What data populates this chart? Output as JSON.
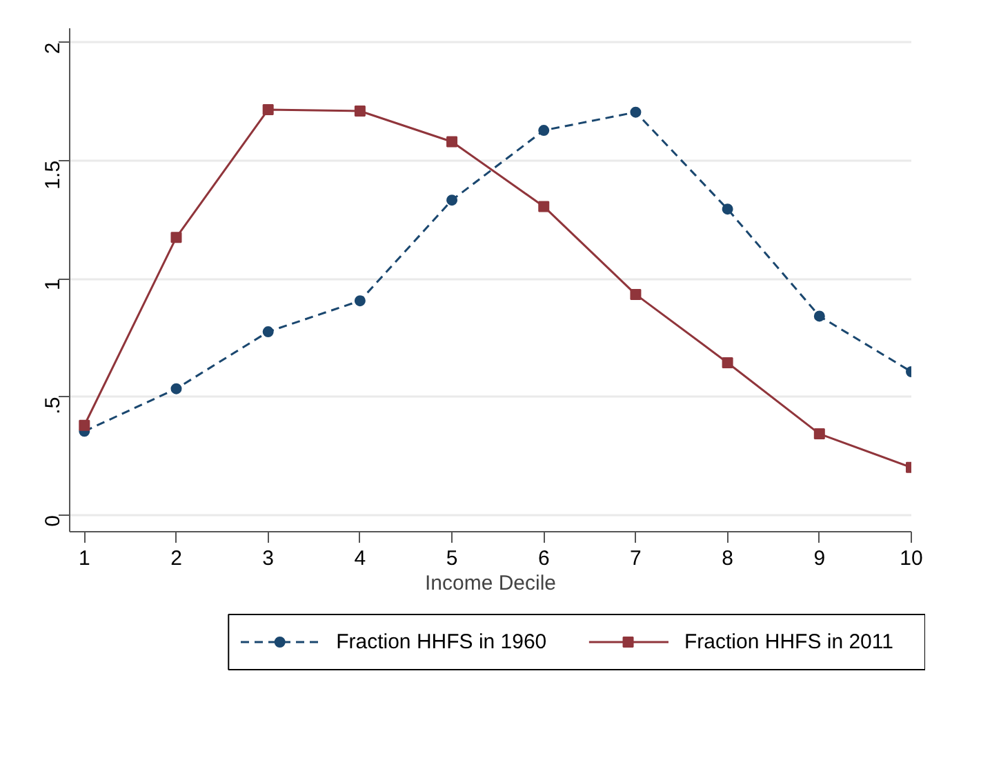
{
  "chart_data": {
    "type": "line",
    "xlabel": "Income Decile",
    "x": [
      1,
      2,
      3,
      4,
      5,
      6,
      7,
      8,
      9,
      10
    ],
    "series": [
      {
        "name": "Fraction HHFS in 1960",
        "color": "#1a476f",
        "line_style": "dashed",
        "marker": "circle",
        "values": [
          0.355,
          0.535,
          0.776,
          0.907,
          1.333,
          1.628,
          1.705,
          1.295,
          0.842,
          0.607
        ]
      },
      {
        "name": "Fraction HHFS in 2011",
        "color": "#90353b",
        "line_style": "solid",
        "marker": "square",
        "values": [
          0.38,
          1.175,
          1.716,
          1.71,
          1.58,
          1.306,
          0.934,
          0.645,
          0.344,
          0.202
        ]
      }
    ],
    "xlim": [
      0.84,
      10.0
    ],
    "ylim": [
      -0.07,
      2.06
    ],
    "xticks": [
      1,
      2,
      3,
      4,
      5,
      6,
      7,
      8,
      9,
      10
    ],
    "yticks": [
      0,
      {
        "value": 0.5,
        "label": ".5"
      },
      1,
      1.5,
      2
    ],
    "grid": "y",
    "legend": "bottom"
  }
}
